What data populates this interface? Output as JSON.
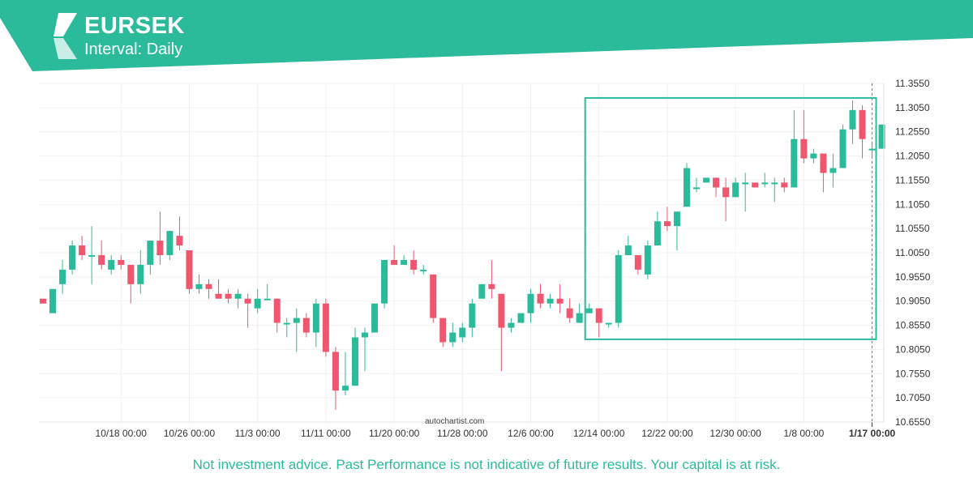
{
  "header": {
    "symbol": "EURSEK",
    "interval_label": "Interval: Daily"
  },
  "colors": {
    "brand": "#2bbb9b",
    "up": "#2bbb9b",
    "down": "#f0566e",
    "grid": "#f0f0f0"
  },
  "watermark": "autochartist.com",
  "disclaimer": "Not investment advice. Past Performance is not indicative of future results. Your capital is at risk.",
  "chart_data": {
    "type": "candlestick",
    "symbol": "EURSEK",
    "interval": "Daily",
    "ylim": [
      10.655,
      11.355
    ],
    "y_ticks": [
      "10.6550",
      "10.7050",
      "10.7550",
      "10.8050",
      "10.8550",
      "10.9050",
      "10.9550",
      "11.0050",
      "11.0550",
      "11.1050",
      "11.1550",
      "11.2050",
      "11.2550",
      "11.3050",
      "11.3550"
    ],
    "x_ticks": [
      {
        "label": "10/18 00:00",
        "index": 8
      },
      {
        "label": "10/26 00:00",
        "index": 15
      },
      {
        "label": "11/3 00:00",
        "index": 22
      },
      {
        "label": "11/11 00:00",
        "index": 29
      },
      {
        "label": "11/20 00:00",
        "index": 36
      },
      {
        "label": "11/28 00:00",
        "index": 43
      },
      {
        "label": "12/6 00:00",
        "index": 50
      },
      {
        "label": "12/14 00:00",
        "index": 57
      },
      {
        "label": "12/22 00:00",
        "index": 64
      },
      {
        "label": "12/30 00:00",
        "index": 71
      },
      {
        "label": "1/8 00:00",
        "index": 78
      },
      {
        "label": "1/17 00:00",
        "index": 85,
        "current": true
      }
    ],
    "pattern_box": {
      "start_index": 56,
      "end_index": 85,
      "low": 10.826,
      "high": 11.325
    },
    "candles": [
      {
        "o": 10.91,
        "h": 10.91,
        "l": 10.9,
        "c": 10.9
      },
      {
        "o": 10.88,
        "h": 10.93,
        "l": 10.88,
        "c": 10.93
      },
      {
        "o": 10.94,
        "h": 10.99,
        "l": 10.92,
        "c": 10.97
      },
      {
        "o": 10.97,
        "h": 11.03,
        "l": 10.96,
        "c": 11.02
      },
      {
        "o": 11.02,
        "h": 11.04,
        "l": 10.99,
        "c": 11.0
      },
      {
        "o": 11.0,
        "h": 11.06,
        "l": 10.94,
        "c": 11.0
      },
      {
        "o": 11.0,
        "h": 11.03,
        "l": 10.97,
        "c": 10.98
      },
      {
        "o": 10.97,
        "h": 11.0,
        "l": 10.96,
        "c": 10.99
      },
      {
        "o": 10.99,
        "h": 11.0,
        "l": 10.97,
        "c": 10.98
      },
      {
        "o": 10.98,
        "h": 10.98,
        "l": 10.9,
        "c": 10.94
      },
      {
        "o": 10.94,
        "h": 11.01,
        "l": 10.92,
        "c": 10.98
      },
      {
        "o": 10.98,
        "h": 11.03,
        "l": 10.96,
        "c": 11.03
      },
      {
        "o": 11.03,
        "h": 11.09,
        "l": 10.98,
        "c": 11.0
      },
      {
        "o": 11.0,
        "h": 11.05,
        "l": 10.99,
        "c": 11.05
      },
      {
        "o": 11.04,
        "h": 11.08,
        "l": 11.01,
        "c": 11.02
      },
      {
        "o": 11.01,
        "h": 11.01,
        "l": 10.92,
        "c": 10.93
      },
      {
        "o": 10.93,
        "h": 10.96,
        "l": 10.92,
        "c": 10.94
      },
      {
        "o": 10.94,
        "h": 10.95,
        "l": 10.91,
        "c": 10.93
      },
      {
        "o": 10.92,
        "h": 10.95,
        "l": 10.91,
        "c": 10.91
      },
      {
        "o": 10.92,
        "h": 10.93,
        "l": 10.9,
        "c": 10.91
      },
      {
        "o": 10.91,
        "h": 10.93,
        "l": 10.89,
        "c": 10.92
      },
      {
        "o": 10.91,
        "h": 10.92,
        "l": 10.85,
        "c": 10.9
      },
      {
        "o": 10.89,
        "h": 10.93,
        "l": 10.88,
        "c": 10.91
      },
      {
        "o": 10.91,
        "h": 10.94,
        "l": 10.91,
        "c": 10.91
      },
      {
        "o": 10.91,
        "h": 10.91,
        "l": 10.84,
        "c": 10.86
      },
      {
        "o": 10.86,
        "h": 10.87,
        "l": 10.83,
        "c": 10.86
      },
      {
        "o": 10.86,
        "h": 10.89,
        "l": 10.8,
        "c": 10.87
      },
      {
        "o": 10.87,
        "h": 10.88,
        "l": 10.83,
        "c": 10.84
      },
      {
        "o": 10.84,
        "h": 10.91,
        "l": 10.81,
        "c": 10.9
      },
      {
        "o": 10.9,
        "h": 10.91,
        "l": 10.79,
        "c": 10.8
      },
      {
        "o": 10.8,
        "h": 10.81,
        "l": 10.68,
        "c": 10.72
      },
      {
        "o": 10.72,
        "h": 10.8,
        "l": 10.71,
        "c": 10.73
      },
      {
        "o": 10.73,
        "h": 10.85,
        "l": 10.73,
        "c": 10.83
      },
      {
        "o": 10.83,
        "h": 10.85,
        "l": 10.76,
        "c": 10.84
      },
      {
        "o": 10.84,
        "h": 10.9,
        "l": 10.84,
        "c": 10.9
      },
      {
        "o": 10.9,
        "h": 10.99,
        "l": 10.89,
        "c": 10.99
      },
      {
        "o": 10.99,
        "h": 11.02,
        "l": 10.98,
        "c": 10.98
      },
      {
        "o": 10.98,
        "h": 11.0,
        "l": 10.98,
        "c": 10.99
      },
      {
        "o": 10.99,
        "h": 11.01,
        "l": 10.96,
        "c": 10.97
      },
      {
        "o": 10.97,
        "h": 10.98,
        "l": 10.96,
        "c": 10.97
      },
      {
        "o": 10.96,
        "h": 10.96,
        "l": 10.86,
        "c": 10.87
      },
      {
        "o": 10.87,
        "h": 10.87,
        "l": 10.81,
        "c": 10.82
      },
      {
        "o": 10.82,
        "h": 10.86,
        "l": 10.81,
        "c": 10.84
      },
      {
        "o": 10.83,
        "h": 10.86,
        "l": 10.82,
        "c": 10.85
      },
      {
        "o": 10.85,
        "h": 10.91,
        "l": 10.83,
        "c": 10.9
      },
      {
        "o": 10.91,
        "h": 10.94,
        "l": 10.91,
        "c": 10.94
      },
      {
        "o": 10.94,
        "h": 10.99,
        "l": 10.91,
        "c": 10.93
      },
      {
        "o": 10.92,
        "h": 10.92,
        "l": 10.76,
        "c": 10.85
      },
      {
        "o": 10.85,
        "h": 10.87,
        "l": 10.84,
        "c": 10.86
      },
      {
        "o": 10.86,
        "h": 10.88,
        "l": 10.86,
        "c": 10.88
      },
      {
        "o": 10.88,
        "h": 10.93,
        "l": 10.86,
        "c": 10.92
      },
      {
        "o": 10.92,
        "h": 10.94,
        "l": 10.89,
        "c": 10.9
      },
      {
        "o": 10.9,
        "h": 10.92,
        "l": 10.89,
        "c": 10.91
      },
      {
        "o": 10.91,
        "h": 10.94,
        "l": 10.88,
        "c": 10.9
      },
      {
        "o": 10.89,
        "h": 10.91,
        "l": 10.86,
        "c": 10.87
      },
      {
        "o": 10.86,
        "h": 10.9,
        "l": 10.86,
        "c": 10.88
      },
      {
        "o": 10.88,
        "h": 10.9,
        "l": 10.88,
        "c": 10.89
      },
      {
        "o": 10.89,
        "h": 10.89,
        "l": 10.83,
        "c": 10.86
      },
      {
        "o": 10.86,
        "h": 10.86,
        "l": 10.85,
        "c": 10.86
      },
      {
        "o": 10.86,
        "h": 11.01,
        "l": 10.85,
        "c": 11.0
      },
      {
        "o": 11.0,
        "h": 11.04,
        "l": 11.0,
        "c": 11.02
      },
      {
        "o": 11.0,
        "h": 11.0,
        "l": 10.96,
        "c": 10.97
      },
      {
        "o": 10.96,
        "h": 11.03,
        "l": 10.95,
        "c": 11.02
      },
      {
        "o": 11.02,
        "h": 11.09,
        "l": 11.02,
        "c": 11.07
      },
      {
        "o": 11.07,
        "h": 11.1,
        "l": 11.05,
        "c": 11.06
      },
      {
        "o": 11.06,
        "h": 11.09,
        "l": 11.01,
        "c": 11.09
      },
      {
        "o": 11.1,
        "h": 11.19,
        "l": 11.1,
        "c": 11.18
      },
      {
        "o": 11.14,
        "h": 11.16,
        "l": 11.13,
        "c": 11.14
      },
      {
        "o": 11.15,
        "h": 11.16,
        "l": 11.15,
        "c": 11.16
      },
      {
        "o": 11.16,
        "h": 11.16,
        "l": 11.12,
        "c": 11.14
      },
      {
        "o": 11.14,
        "h": 11.16,
        "l": 11.07,
        "c": 11.12
      },
      {
        "o": 11.12,
        "h": 11.16,
        "l": 11.12,
        "c": 11.15
      },
      {
        "o": 11.15,
        "h": 11.17,
        "l": 11.09,
        "c": 11.15
      },
      {
        "o": 11.15,
        "h": 11.15,
        "l": 11.14,
        "c": 11.14
      },
      {
        "o": 11.15,
        "h": 11.17,
        "l": 11.14,
        "c": 11.15
      },
      {
        "o": 11.15,
        "h": 11.16,
        "l": 11.11,
        "c": 11.15
      },
      {
        "o": 11.15,
        "h": 11.16,
        "l": 11.13,
        "c": 11.14
      },
      {
        "o": 11.14,
        "h": 11.3,
        "l": 11.14,
        "c": 11.24
      },
      {
        "o": 11.24,
        "h": 11.3,
        "l": 11.19,
        "c": 11.2
      },
      {
        "o": 11.2,
        "h": 11.22,
        "l": 11.19,
        "c": 11.21
      },
      {
        "o": 11.21,
        "h": 11.21,
        "l": 11.13,
        "c": 11.17
      },
      {
        "o": 11.17,
        "h": 11.21,
        "l": 11.14,
        "c": 11.18
      },
      {
        "o": 11.18,
        "h": 11.27,
        "l": 11.18,
        "c": 11.26
      },
      {
        "o": 11.26,
        "h": 11.32,
        "l": 11.23,
        "c": 11.3
      },
      {
        "o": 11.3,
        "h": 11.31,
        "l": 11.2,
        "c": 11.24
      },
      {
        "o": 11.22,
        "h": 11.23,
        "l": 11.2,
        "c": 11.22
      },
      {
        "o": 11.22,
        "h": 11.27,
        "l": 11.22,
        "c": 11.27
      }
    ]
  }
}
